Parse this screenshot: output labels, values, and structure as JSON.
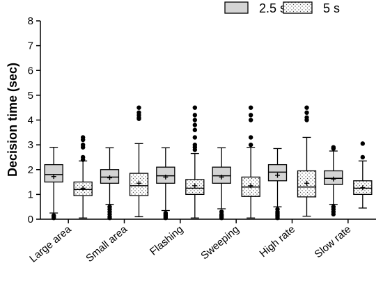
{
  "chart_data": {
    "type": "boxplot",
    "ylabel": "Decision time (sec)",
    "ylim": [
      0,
      8
    ],
    "yticks": [
      0,
      1,
      2,
      3,
      4,
      5,
      6,
      7,
      8
    ],
    "categories": [
      "Large area",
      "Small area",
      "Flashing",
      "Sweeping",
      "High rate",
      "Slow rate"
    ],
    "legend_position": "top-right",
    "series": [
      {
        "name": "2.5 s",
        "color": "#d4d4d4",
        "pattern": "solid",
        "boxes": [
          {
            "whisker_low": 0.25,
            "q1": 1.5,
            "median": 1.8,
            "q3": 2.2,
            "whisker_high": 2.9,
            "mean": 1.72,
            "outliers": [
              0.05,
              0.1,
              0.15
            ]
          },
          {
            "whisker_low": 0.6,
            "q1": 1.45,
            "median": 1.7,
            "q3": 2.0,
            "whisker_high": 2.88,
            "mean": 1.67,
            "outliers": [
              0.05,
              0.1,
              0.2,
              0.3,
              0.4,
              0.5
            ]
          },
          {
            "whisker_low": 0.35,
            "q1": 1.45,
            "median": 1.75,
            "q3": 2.1,
            "whisker_high": 2.88,
            "mean": 1.7,
            "outliers": [
              0.05,
              0.1,
              0.15,
              0.2,
              0.25
            ]
          },
          {
            "whisker_low": 0.42,
            "q1": 1.45,
            "median": 1.75,
            "q3": 2.1,
            "whisker_high": 2.88,
            "mean": 1.7,
            "outliers": [
              0.05,
              0.1,
              0.15,
              0.2,
              0.3
            ]
          },
          {
            "whisker_low": 0.5,
            "q1": 1.55,
            "median": 1.9,
            "q3": 2.2,
            "whisker_high": 2.85,
            "mean": 1.77,
            "outliers": [
              0.05,
              0.1,
              0.15,
              0.2,
              0.25,
              0.3,
              0.4
            ]
          },
          {
            "whisker_low": 0.6,
            "q1": 1.4,
            "median": 1.65,
            "q3": 1.95,
            "whisker_high": 2.75,
            "mean": 1.62,
            "outliers": [
              0.2,
              0.3,
              0.4,
              0.5,
              2.85,
              2.9
            ]
          }
        ]
      },
      {
        "name": "5 s",
        "color": "#ffffff",
        "pattern": "dotted",
        "boxes": [
          {
            "whisker_low": 0.05,
            "q1": 0.95,
            "median": 1.2,
            "q3": 1.5,
            "whisker_high": 2.35,
            "mean": 1.25,
            "outliers": [
              2.4,
              2.5,
              2.9,
              3.0,
              3.2,
              3.3
            ]
          },
          {
            "whisker_low": 0.1,
            "q1": 0.95,
            "median": 1.35,
            "q3": 1.85,
            "whisker_high": 3.05,
            "mean": 1.45,
            "outliers": [
              4.05,
              4.1,
              4.2,
              4.3,
              4.5
            ]
          },
          {
            "whisker_low": 0.05,
            "q1": 1.0,
            "median": 1.25,
            "q3": 1.6,
            "whisker_high": 2.65,
            "mean": 1.35,
            "outliers": [
              2.8,
              2.9,
              3.0,
              3.3,
              3.6,
              3.8,
              4.0,
              4.2,
              4.5
            ]
          },
          {
            "whisker_low": 0.05,
            "q1": 0.92,
            "median": 1.3,
            "q3": 1.7,
            "whisker_high": 2.9,
            "mean": 1.35,
            "outliers": [
              3.0,
              3.3,
              4.0,
              4.2,
              4.5
            ]
          },
          {
            "whisker_low": 0.12,
            "q1": 0.9,
            "median": 1.3,
            "q3": 1.95,
            "whisker_high": 3.3,
            "mean": 1.45,
            "outliers": [
              4.0,
              4.1,
              4.3,
              4.5
            ]
          },
          {
            "whisker_low": 0.45,
            "q1": 1.0,
            "median": 1.25,
            "q3": 1.55,
            "whisker_high": 2.35,
            "mean": 1.27,
            "outliers": [
              2.5,
              3.05
            ]
          }
        ]
      }
    ]
  }
}
